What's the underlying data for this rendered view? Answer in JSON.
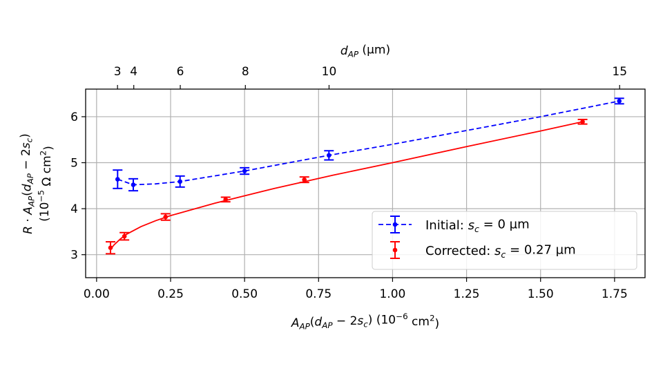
{
  "chart_data": {
    "type": "scatter",
    "title": "",
    "xlabel": [
      {
        "t": "A",
        "i": true
      },
      {
        "t": "AP",
        "sub": true,
        "i": true
      },
      {
        "t": "("
      },
      {
        "t": "d",
        "i": true
      },
      {
        "t": "AP",
        "sub": true,
        "i": true
      },
      {
        "t": " − 2"
      },
      {
        "t": "s",
        "i": true
      },
      {
        "t": "c",
        "sub": true,
        "i": true
      },
      {
        "t": ")  (10"
      },
      {
        "t": "−6",
        "sup": true
      },
      {
        "t": " cm"
      },
      {
        "t": "2",
        "sup": true
      },
      {
        "t": ")"
      }
    ],
    "ylabel_line1": [
      {
        "t": "R",
        "i": true
      },
      {
        "t": " · "
      },
      {
        "t": "A",
        "i": true
      },
      {
        "t": "AP",
        "sub": true,
        "i": true
      },
      {
        "t": "("
      },
      {
        "t": "d",
        "i": true
      },
      {
        "t": "AP",
        "sub": true,
        "i": true
      },
      {
        "t": " − 2"
      },
      {
        "t": "s",
        "i": true
      },
      {
        "t": "c",
        "sub": true,
        "i": true
      },
      {
        "t": ")"
      }
    ],
    "ylabel_line2": [
      {
        "t": "(10"
      },
      {
        "t": "−5",
        "sup": true
      },
      {
        "t": " Ω cm"
      },
      {
        "t": "2",
        "sup": true
      },
      {
        "t": ")"
      }
    ],
    "top_xlabel": [
      {
        "t": "d",
        "i": true
      },
      {
        "t": "AP",
        "sub": true,
        "i": true
      },
      {
        "t": " (µm)"
      }
    ],
    "xlim": [
      -0.037,
      1.853
    ],
    "ylim": [
      2.5,
      6.6
    ],
    "xticks": [
      0.0,
      0.25,
      0.5,
      0.75,
      1.0,
      1.25,
      1.5,
      1.75
    ],
    "xtick_labels": [
      "0.00",
      "0.25",
      "0.50",
      "0.75",
      "1.00",
      "1.25",
      "1.50",
      "1.75"
    ],
    "yticks": [
      3,
      4,
      5,
      6
    ],
    "ytick_labels": [
      "3",
      "4",
      "5",
      "6"
    ],
    "top_ticks_d_um": [
      3,
      4,
      6,
      8,
      10,
      15
    ],
    "top_tick_labels": [
      "3",
      "4",
      "6",
      "8",
      "10",
      "15"
    ],
    "grid": true,
    "legend_placement": "lower-right",
    "series": [
      {
        "name": [
          {
            "t": "Initial: "
          },
          {
            "t": "s",
            "i": true
          },
          {
            "t": "c",
            "sub": true,
            "i": true
          },
          {
            "t": " = 0 µm"
          }
        ],
        "color": "#0000ff",
        "line_style": "dashed",
        "x": [
          0.071,
          0.124,
          0.282,
          0.5,
          0.785,
          1.766
        ],
        "y": [
          4.64,
          4.52,
          4.59,
          4.82,
          5.16,
          6.34
        ],
        "yerr": [
          0.2,
          0.13,
          0.12,
          0.07,
          0.1,
          0.06
        ],
        "fit": [
          [
            0.071,
            4.64
          ],
          [
            0.124,
            4.52
          ],
          [
            0.2,
            4.54
          ],
          [
            0.282,
            4.59
          ],
          [
            0.5,
            4.82
          ],
          [
            0.785,
            5.16
          ],
          [
            1.0,
            5.4
          ],
          [
            1.5,
            6.0
          ],
          [
            1.766,
            6.34
          ]
        ]
      },
      {
        "name": [
          {
            "t": "Corrected: "
          },
          {
            "t": "s",
            "i": true
          },
          {
            "t": "c",
            "sub": true,
            "i": true
          },
          {
            "t": " = 0.27 µm"
          }
        ],
        "color": "#ff0000",
        "line_style": "solid",
        "x": [
          0.047,
          0.094,
          0.233,
          0.436,
          0.702,
          1.642
        ],
        "y": [
          3.15,
          3.4,
          3.82,
          4.2,
          4.63,
          5.89
        ],
        "yerr": [
          0.13,
          0.08,
          0.07,
          0.05,
          0.06,
          0.05
        ],
        "fit": [
          [
            0.047,
            3.12
          ],
          [
            0.06,
            3.22
          ],
          [
            0.08,
            3.34
          ],
          [
            0.1,
            3.44
          ],
          [
            0.15,
            3.61
          ],
          [
            0.2,
            3.74
          ],
          [
            0.25,
            3.85
          ],
          [
            0.4,
            4.12
          ],
          [
            0.6,
            4.44
          ],
          [
            0.8,
            4.73
          ],
          [
            1.0,
            5.0
          ],
          [
            1.25,
            5.35
          ],
          [
            1.5,
            5.69
          ],
          [
            1.642,
            5.89
          ]
        ]
      }
    ]
  }
}
